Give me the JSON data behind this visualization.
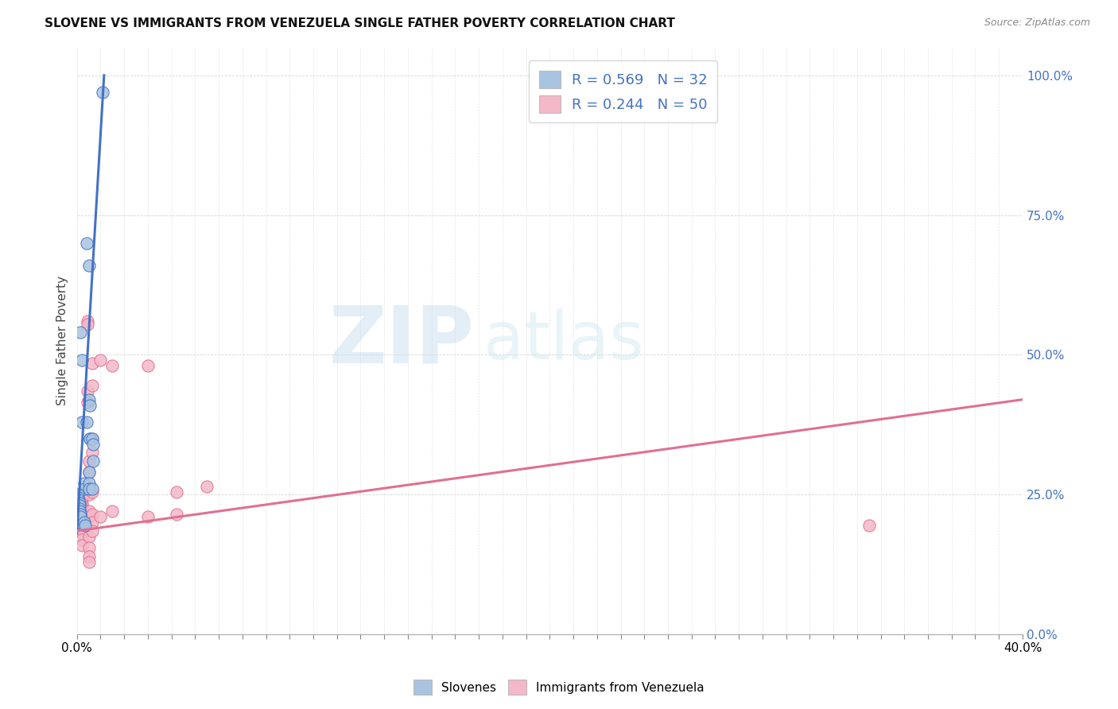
{
  "title": "SLOVENE VS IMMIGRANTS FROM VENEZUELA SINGLE FATHER POVERTY CORRELATION CHART",
  "source": "Source: ZipAtlas.com",
  "ylabel": "Single Father Poverty",
  "legend_blue_r": "R = 0.569",
  "legend_blue_n": "N = 32",
  "legend_pink_r": "R = 0.244",
  "legend_pink_n": "N = 50",
  "blue_color": "#a8c4e0",
  "pink_color": "#f4b8c8",
  "blue_line_color": "#4472c4",
  "pink_line_color": "#e07090",
  "watermark_zip": "ZIP",
  "watermark_atlas": "atlas",
  "blue_scatter": [
    [
      0.0,
      20.0
    ],
    [
      0.3,
      27.0
    ],
    [
      0.3,
      26.0
    ],
    [
      0.2,
      38.0
    ],
    [
      0.4,
      70.0
    ],
    [
      0.5,
      66.0
    ],
    [
      0.15,
      54.0
    ],
    [
      0.2,
      49.0
    ],
    [
      0.5,
      42.0
    ],
    [
      0.55,
      41.0
    ],
    [
      0.4,
      38.0
    ],
    [
      0.55,
      35.0
    ],
    [
      0.55,
      35.0
    ],
    [
      0.65,
      35.0
    ],
    [
      0.7,
      34.0
    ],
    [
      0.7,
      31.0
    ],
    [
      0.5,
      29.0
    ],
    [
      0.5,
      27.0
    ],
    [
      0.5,
      26.0
    ],
    [
      0.65,
      26.0
    ],
    [
      0.05,
      25.0
    ],
    [
      0.05,
      24.5
    ],
    [
      0.05,
      24.0
    ],
    [
      0.1,
      23.5
    ],
    [
      0.1,
      23.0
    ],
    [
      0.1,
      22.5
    ],
    [
      0.1,
      22.0
    ],
    [
      0.15,
      21.5
    ],
    [
      0.15,
      21.0
    ],
    [
      0.3,
      20.0
    ],
    [
      0.35,
      19.5
    ],
    [
      1.1,
      97.0
    ]
  ],
  "pink_scatter": [
    [
      0.1,
      25.0
    ],
    [
      0.1,
      24.5
    ],
    [
      0.1,
      24.0
    ],
    [
      0.15,
      23.5
    ],
    [
      0.2,
      25.0
    ],
    [
      0.2,
      24.5
    ],
    [
      0.2,
      23.5
    ],
    [
      0.2,
      23.0
    ],
    [
      0.2,
      22.5
    ],
    [
      0.2,
      22.0
    ],
    [
      0.2,
      21.5
    ],
    [
      0.2,
      21.0
    ],
    [
      0.2,
      20.5
    ],
    [
      0.2,
      20.0
    ],
    [
      0.2,
      19.0
    ],
    [
      0.2,
      18.0
    ],
    [
      0.2,
      17.0
    ],
    [
      0.2,
      16.0
    ],
    [
      0.45,
      56.0
    ],
    [
      0.45,
      55.5
    ],
    [
      0.45,
      43.5
    ],
    [
      0.45,
      41.5
    ],
    [
      0.5,
      31.0
    ],
    [
      0.5,
      29.0
    ],
    [
      0.5,
      25.5
    ],
    [
      0.5,
      25.0
    ],
    [
      0.5,
      22.0
    ],
    [
      0.5,
      21.0
    ],
    [
      0.5,
      17.5
    ],
    [
      0.5,
      15.5
    ],
    [
      0.5,
      14.0
    ],
    [
      0.5,
      13.0
    ],
    [
      0.65,
      48.5
    ],
    [
      0.65,
      44.5
    ],
    [
      0.65,
      35.0
    ],
    [
      0.65,
      32.5
    ],
    [
      0.65,
      25.5
    ],
    [
      0.65,
      21.5
    ],
    [
      0.65,
      20.0
    ],
    [
      0.65,
      18.5
    ],
    [
      1.0,
      49.0
    ],
    [
      1.0,
      21.0
    ],
    [
      1.5,
      48.0
    ],
    [
      1.5,
      22.0
    ],
    [
      3.0,
      48.0
    ],
    [
      3.0,
      21.0
    ],
    [
      4.2,
      25.5
    ],
    [
      4.2,
      21.5
    ],
    [
      5.5,
      26.5
    ],
    [
      33.5,
      19.5
    ]
  ],
  "blue_trendline_x": [
    0.0,
    1.15
  ],
  "blue_trendline_y": [
    18.0,
    100.0
  ],
  "pink_trendline_x": [
    0.0,
    40.0
  ],
  "pink_trendline_y": [
    18.5,
    42.0
  ],
  "xmin": 0.0,
  "xmax": 40.0,
  "ymin": 0.0,
  "ymax": 105.0,
  "yticks": [
    0.0,
    25.0,
    50.0,
    75.0,
    100.0
  ],
  "xtick_count": 9,
  "xtick_step": 5.0,
  "n_xticks_minor": 40
}
